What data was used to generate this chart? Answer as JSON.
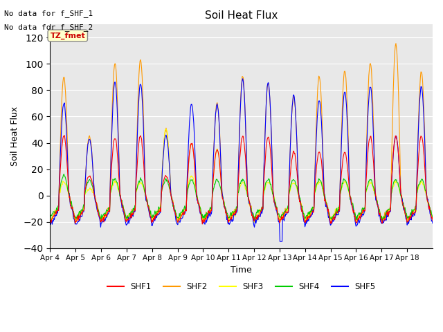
{
  "title": "Soil Heat Flux",
  "ylabel": "Soil Heat Flux",
  "xlabel": "Time",
  "top_text": [
    "No data for f_SHF_1",
    "No data for f_SHF_2"
  ],
  "tz_label": "TZ_fmet",
  "ylim": [
    -40,
    130
  ],
  "yticks": [
    -40,
    -20,
    0,
    20,
    40,
    60,
    80,
    100,
    120
  ],
  "legend_entries": [
    "SHF1",
    "SHF2",
    "SHF3",
    "SHF4",
    "SHF5"
  ],
  "colors": {
    "SHF1": "#ff0000",
    "SHF2": "#ff9900",
    "SHF3": "#ffff00",
    "SHF4": "#00cc00",
    "SHF5": "#0000ff"
  },
  "bg_color": "#e8e8e8",
  "tz_box_color": "#ffffcc",
  "tz_text_color": "#cc0000",
  "start_day": 4,
  "end_day": 19,
  "n_days": 15
}
